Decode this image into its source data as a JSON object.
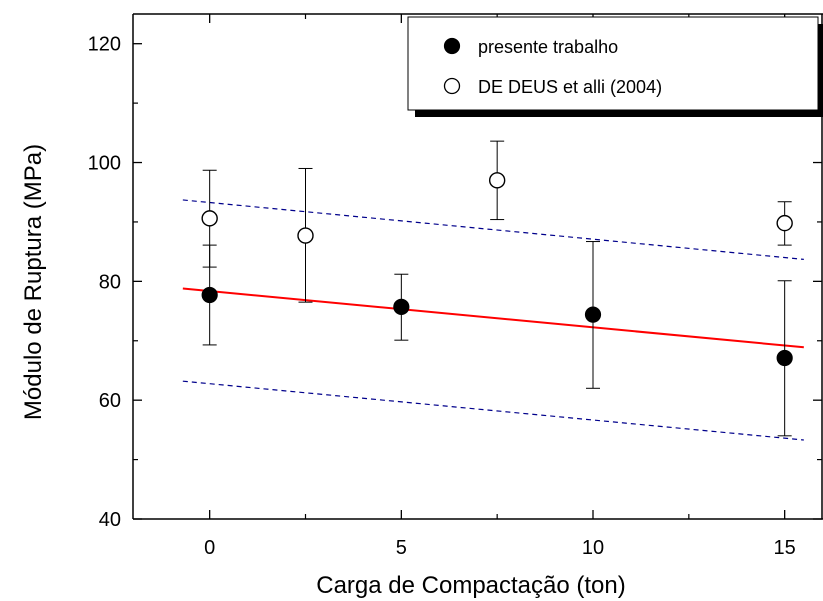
{
  "chart_data": {
    "type": "scatter",
    "xlabel": "Carga de Compactação (ton)",
    "ylabel": "Módulo de Ruptura (MPa)",
    "xlim": [
      -2,
      16
    ],
    "ylim": [
      40,
      125
    ],
    "xticks": [
      "0",
      "5",
      "10",
      "15"
    ],
    "xtick_values": [
      0,
      5,
      10,
      15
    ],
    "yticks": [
      "40",
      "60",
      "80",
      "100",
      "120"
    ],
    "ytick_values": [
      40,
      60,
      80,
      100,
      120
    ],
    "grid": false,
    "legend_position": "top-right",
    "series": [
      {
        "name": "presente trabalho",
        "marker": "filled-circle",
        "color": "#000000",
        "points": [
          {
            "x": 0,
            "y": 77.7,
            "err_low": 69.3,
            "err_high": 86.1
          },
          {
            "x": 5,
            "y": 75.7,
            "err_low": 70.1,
            "err_high": 81.2
          },
          {
            "x": 10,
            "y": 74.4,
            "err_low": 62.0,
            "err_high": 86.7
          },
          {
            "x": 15,
            "y": 67.1,
            "err_low": 54.0,
            "err_high": 80.1
          }
        ]
      },
      {
        "name": "DE DEUS et alli (2004)",
        "marker": "open-circle",
        "color": "#000000",
        "points": [
          {
            "x": 0,
            "y": 90.6,
            "err_low": 82.4,
            "err_high": 98.7
          },
          {
            "x": 2.5,
            "y": 87.7,
            "err_low": 76.5,
            "err_high": 99.0
          },
          {
            "x": 7.5,
            "y": 97.0,
            "err_low": 90.4,
            "err_high": 103.6
          },
          {
            "x": 15,
            "y": 89.8,
            "err_low": 86.1,
            "err_high": 93.4
          }
        ]
      }
    ],
    "lines": [
      {
        "role": "fit",
        "style": "solid",
        "color": "#ff0000",
        "x": [
          -0.7,
          15.5
        ],
        "y": [
          78.8,
          68.9
        ]
      },
      {
        "role": "upper-band",
        "style": "dashed",
        "color": "#00008b",
        "x": [
          -0.7,
          15.5
        ],
        "y": [
          93.7,
          83.7
        ]
      },
      {
        "role": "lower-band",
        "style": "dashed",
        "color": "#00008b",
        "x": [
          -0.7,
          15.5
        ],
        "y": [
          63.2,
          53.3
        ]
      }
    ]
  }
}
